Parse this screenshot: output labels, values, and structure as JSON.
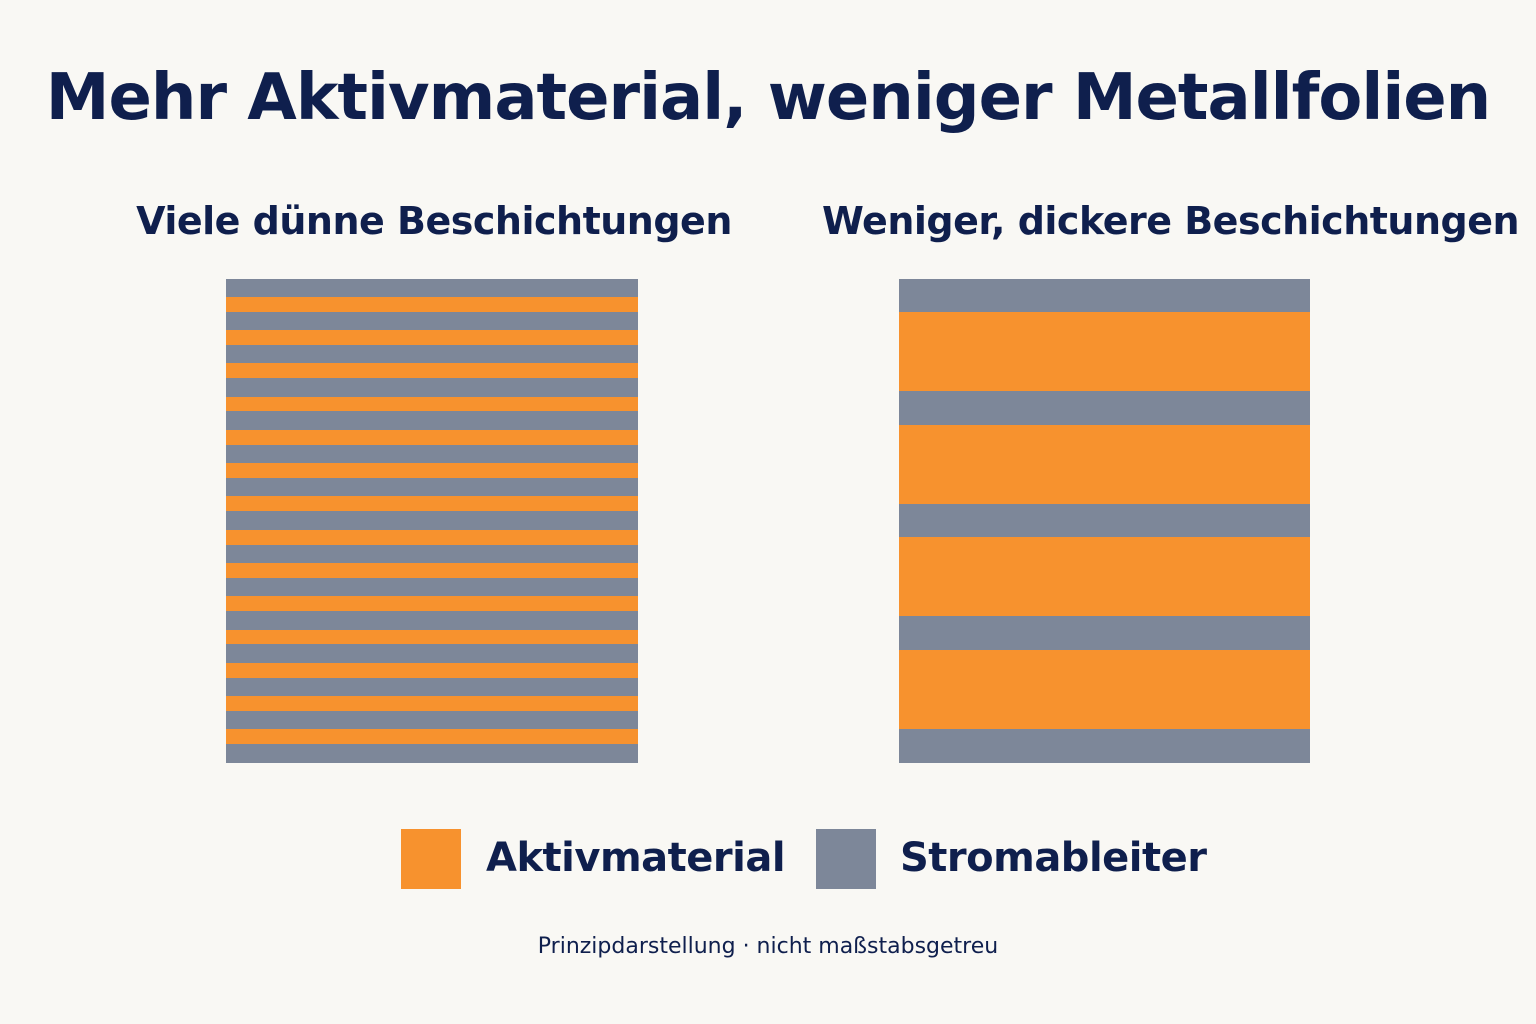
{
  "title": "Mehr Aktivmaterial, weniger Metallfolien",
  "panels": [
    {
      "heading": "Viele dünne Beschichtungen",
      "layers": [
        "collector",
        "active",
        "collector",
        "active",
        "collector",
        "active",
        "collector",
        "active",
        "collector",
        "active",
        "collector",
        "active",
        "collector",
        "active",
        "collector",
        "active",
        "collector",
        "active",
        "collector",
        "active",
        "collector",
        "active",
        "collector",
        "active",
        "collector",
        "active",
        "collector",
        "active",
        "collector"
      ]
    },
    {
      "heading": "Weniger, dickere Beschichtungen",
      "layers": [
        "collector",
        "active",
        "collector",
        "active",
        "collector",
        "active",
        "collector",
        "active",
        "collector"
      ]
    }
  ],
  "legend": {
    "active_label": "Aktivmaterial",
    "collector_label": "Stromableiter"
  },
  "colors": {
    "active": "#f7922e",
    "collector": "#7d8799",
    "text": "#0f1f4d",
    "background": "#f9f8f4"
  },
  "footnote": "Prinzipdarstellung · nicht maßstabsgetreu"
}
